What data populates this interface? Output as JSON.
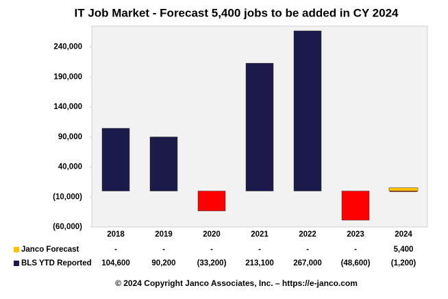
{
  "chart_data": {
    "type": "bar",
    "title": "IT Job Market - Forecast 5,400 jobs to be added in CY 2024",
    "categories": [
      "2018",
      "2019",
      "2020",
      "2021",
      "2022",
      "2023",
      "2024"
    ],
    "series": [
      {
        "name": "Janco Forecast",
        "color": "#ffc000",
        "values": [
          null,
          null,
          null,
          null,
          null,
          null,
          5400
        ],
        "value_labels": [
          "-",
          "-",
          "-",
          "-",
          "-",
          "-",
          "5,400"
        ]
      },
      {
        "name": "BLS YTD Reported",
        "color": "#1b1a4a",
        "negative_color": "#ff0000",
        "values": [
          104600,
          90200,
          -33200,
          213100,
          267000,
          -48600,
          -1200
        ],
        "value_labels": [
          "104,600",
          "90,200",
          "(33,200)",
          "213,100",
          "267,000",
          "(48,600)",
          "(1,200)"
        ]
      }
    ],
    "ylim": [
      -60000,
      275000
    ],
    "yticks": [
      {
        "value": -60000,
        "label": "(60,000)"
      },
      {
        "value": -10000,
        "label": "(10,000)"
      },
      {
        "value": 40000,
        "label": "40,000"
      },
      {
        "value": 90000,
        "label": "90,000"
      },
      {
        "value": 140000,
        "label": "140,000"
      },
      {
        "value": 190000,
        "label": "190,000"
      },
      {
        "value": 240000,
        "label": "240,000"
      }
    ],
    "footer": "© 2024 Copyright Janco Associates, Inc. – https://e-janco.com"
  }
}
